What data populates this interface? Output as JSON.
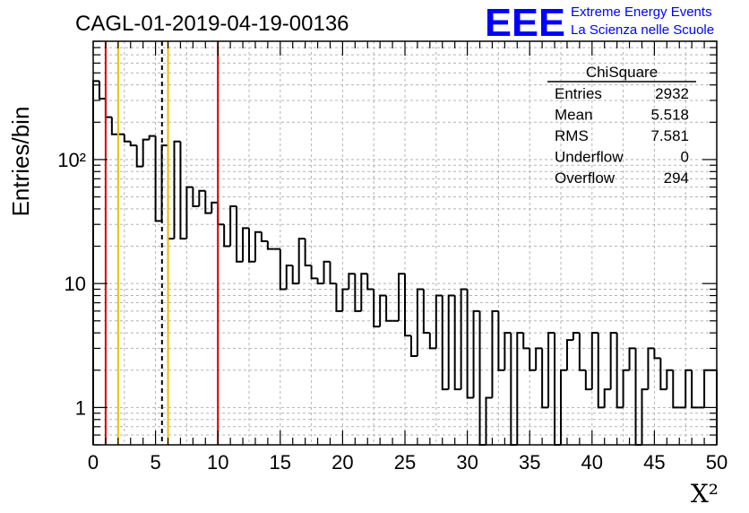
{
  "chart_data": {
    "type": "bar",
    "title": "CAGL-01-2019-04-19-00136",
    "xlabel": "X²",
    "ylabel": "Entries/bin",
    "xlim": [
      0,
      50
    ],
    "yscale": "log",
    "ylim": [
      0.5,
      900
    ],
    "grid": true,
    "x_ticks": [
      "0",
      "5",
      "10",
      "15",
      "20",
      "25",
      "30",
      "35",
      "40",
      "45",
      "50"
    ],
    "y_ticks": [
      {
        "value": 1,
        "label": "1"
      },
      {
        "value": 10,
        "label": "10"
      },
      {
        "value": 100,
        "label": "10²"
      }
    ],
    "bin_width": 0.5,
    "bin_start": 0,
    "values": [
      430,
      310,
      220,
      160,
      160,
      140,
      130,
      88,
      145,
      155,
      32,
      130,
      23,
      140,
      23,
      60,
      42,
      56,
      37,
      45,
      30,
      20,
      42,
      15,
      28,
      15,
      26,
      22,
      19,
      19,
      9,
      14,
      10,
      23,
      14,
      11,
      10,
      15,
      10,
      6,
      9,
      12,
      6,
      12,
      9,
      4.5,
      8,
      5,
      5,
      12,
      3.8,
      2.6,
      9,
      4,
      3,
      8,
      1.4,
      8,
      1.4,
      9,
      1.2,
      6,
      0,
      1.2,
      6,
      2,
      4,
      0.01,
      4,
      3,
      2,
      3,
      1,
      4,
      0.01,
      2,
      3.5,
      4,
      2,
      1.4,
      4,
      1,
      1.4,
      4,
      1,
      2,
      3,
      0.01,
      1.4,
      3,
      2.5,
      1.4,
      2,
      1,
      1,
      2,
      1,
      1,
      2,
      2
    ],
    "vertical_lines": [
      {
        "x": 1,
        "color": "#d40000",
        "style": "solid"
      },
      {
        "x": 2,
        "color": "#f0c000",
        "style": "solid"
      },
      {
        "x": 5.518,
        "color": "#000000",
        "style": "dashed"
      },
      {
        "x": 6,
        "color": "#f0c000",
        "style": "solid"
      },
      {
        "x": 10,
        "color": "#d40000",
        "style": "solid"
      }
    ]
  },
  "stats_box": {
    "title": "ChiSquare",
    "rows": [
      {
        "label": "Entries",
        "value": "2932"
      },
      {
        "label": "Mean",
        "value": "5.518"
      },
      {
        "label": "RMS",
        "value": "7.581"
      },
      {
        "label": "Underflow",
        "value": "0"
      },
      {
        "label": "Overflow",
        "value": "294"
      }
    ]
  },
  "logo": {
    "mark": "EEE",
    "line1": "Extreme Energy Events",
    "line2": "La Scienza nelle Scuole",
    "color": "#0000ff"
  },
  "colors": {
    "histogram": "#000000",
    "grid": "#b4b4b4",
    "red_line": "#d40000",
    "yellow_line": "#f0c000"
  }
}
